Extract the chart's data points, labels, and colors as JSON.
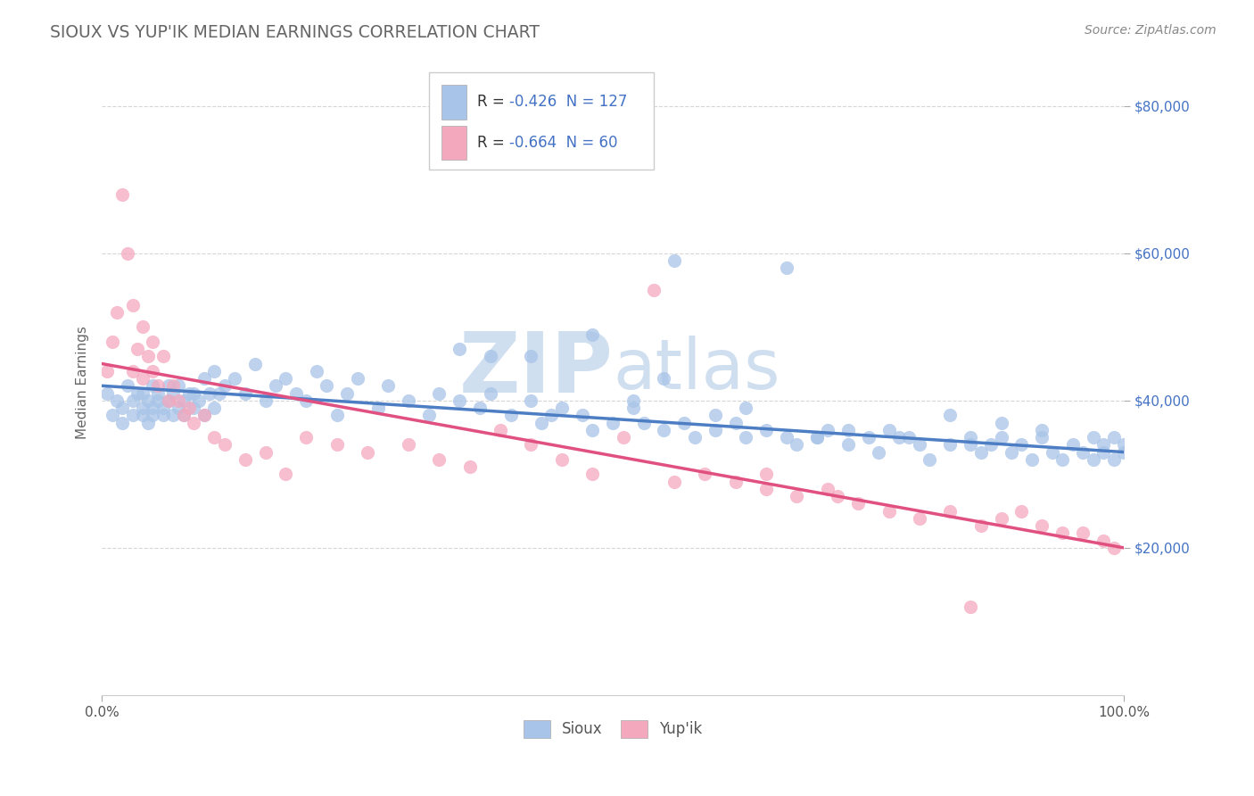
{
  "title": "SIOUX VS YUP'IK MEDIAN EARNINGS CORRELATION CHART",
  "source": "Source: ZipAtlas.com",
  "ylabel": "Median Earnings",
  "xmin": 0.0,
  "xmax": 1.0,
  "ymin": 0,
  "ymax": 85000,
  "sioux_color": "#a8c4e8",
  "yupik_color": "#f4a8be",
  "sioux_line_color": "#4d7ec4",
  "yupik_line_color": "#e05080",
  "title_color": "#666666",
  "value_color": "#4472c4",
  "source_color": "#888888",
  "watermark_zip": "ZIP",
  "watermark_atlas": "atlas",
  "watermark_color": "#d0dff0",
  "background_color": "#ffffff",
  "grid_color": "#cccccc",
  "sioux_R": -0.426,
  "sioux_N": 127,
  "yupik_R": -0.664,
  "yupik_N": 60,
  "sioux_intercept": 42000,
  "sioux_slope": -9000,
  "yupik_intercept": 45000,
  "yupik_slope": -25000,
  "sioux_scatter_x": [
    0.005,
    0.01,
    0.015,
    0.02,
    0.02,
    0.025,
    0.03,
    0.03,
    0.035,
    0.04,
    0.04,
    0.04,
    0.045,
    0.045,
    0.05,
    0.05,
    0.05,
    0.055,
    0.055,
    0.06,
    0.06,
    0.065,
    0.065,
    0.07,
    0.07,
    0.075,
    0.075,
    0.08,
    0.08,
    0.085,
    0.09,
    0.09,
    0.095,
    0.1,
    0.1,
    0.105,
    0.11,
    0.11,
    0.115,
    0.12,
    0.13,
    0.14,
    0.15,
    0.16,
    0.17,
    0.18,
    0.19,
    0.2,
    0.21,
    0.22,
    0.23,
    0.24,
    0.25,
    0.27,
    0.28,
    0.3,
    0.32,
    0.33,
    0.35,
    0.37,
    0.38,
    0.4,
    0.42,
    0.43,
    0.45,
    0.47,
    0.48,
    0.5,
    0.52,
    0.53,
    0.55,
    0.57,
    0.58,
    0.6,
    0.62,
    0.63,
    0.65,
    0.67,
    0.68,
    0.7,
    0.71,
    0.73,
    0.75,
    0.76,
    0.78,
    0.8,
    0.81,
    0.83,
    0.85,
    0.86,
    0.87,
    0.88,
    0.89,
    0.9,
    0.91,
    0.92,
    0.93,
    0.94,
    0.95,
    0.96,
    0.97,
    0.97,
    0.98,
    0.98,
    0.99,
    0.99,
    1.0,
    1.0,
    0.35,
    0.42,
    0.48,
    0.55,
    0.63,
    0.7,
    0.77,
    0.83,
    0.88,
    0.56,
    0.44,
    0.67,
    0.73,
    0.52,
    0.38,
    0.6,
    0.79,
    0.85,
    0.92
  ],
  "sioux_scatter_y": [
    41000,
    38000,
    40000,
    39000,
    37000,
    42000,
    40000,
    38000,
    41000,
    39000,
    38000,
    41000,
    40000,
    37000,
    42000,
    39000,
    38000,
    41000,
    40000,
    39000,
    38000,
    42000,
    40000,
    41000,
    38000,
    39000,
    42000,
    40000,
    38000,
    41000,
    39000,
    41000,
    40000,
    43000,
    38000,
    41000,
    44000,
    39000,
    41000,
    42000,
    43000,
    41000,
    45000,
    40000,
    42000,
    43000,
    41000,
    40000,
    44000,
    42000,
    38000,
    41000,
    43000,
    39000,
    42000,
    40000,
    38000,
    41000,
    40000,
    39000,
    41000,
    38000,
    40000,
    37000,
    39000,
    38000,
    36000,
    37000,
    39000,
    37000,
    36000,
    37000,
    35000,
    36000,
    37000,
    35000,
    36000,
    35000,
    34000,
    35000,
    36000,
    34000,
    35000,
    33000,
    35000,
    34000,
    32000,
    34000,
    35000,
    33000,
    34000,
    35000,
    33000,
    34000,
    32000,
    35000,
    33000,
    32000,
    34000,
    33000,
    35000,
    32000,
    34000,
    33000,
    35000,
    32000,
    34000,
    33000,
    47000,
    46000,
    49000,
    43000,
    39000,
    35000,
    36000,
    38000,
    37000,
    59000,
    38000,
    58000,
    36000,
    40000,
    46000,
    38000,
    35000,
    34000,
    36000
  ],
  "yupik_scatter_x": [
    0.005,
    0.01,
    0.015,
    0.02,
    0.025,
    0.03,
    0.03,
    0.035,
    0.04,
    0.04,
    0.045,
    0.05,
    0.05,
    0.055,
    0.06,
    0.065,
    0.07,
    0.075,
    0.08,
    0.085,
    0.09,
    0.1,
    0.11,
    0.12,
    0.14,
    0.16,
    0.18,
    0.2,
    0.23,
    0.26,
    0.3,
    0.33,
    0.36,
    0.39,
    0.42,
    0.45,
    0.48,
    0.51,
    0.54,
    0.56,
    0.59,
    0.62,
    0.65,
    0.68,
    0.71,
    0.74,
    0.77,
    0.8,
    0.83,
    0.86,
    0.88,
    0.9,
    0.92,
    0.94,
    0.96,
    0.98,
    0.99,
    0.65,
    0.72,
    0.85
  ],
  "yupik_scatter_y": [
    44000,
    48000,
    52000,
    68000,
    60000,
    53000,
    44000,
    47000,
    50000,
    43000,
    46000,
    48000,
    44000,
    42000,
    46000,
    40000,
    42000,
    40000,
    38000,
    39000,
    37000,
    38000,
    35000,
    34000,
    32000,
    33000,
    30000,
    35000,
    34000,
    33000,
    34000,
    32000,
    31000,
    36000,
    34000,
    32000,
    30000,
    35000,
    55000,
    29000,
    30000,
    29000,
    28000,
    27000,
    28000,
    26000,
    25000,
    24000,
    25000,
    23000,
    24000,
    25000,
    23000,
    22000,
    22000,
    21000,
    20000,
    30000,
    27000,
    12000
  ]
}
